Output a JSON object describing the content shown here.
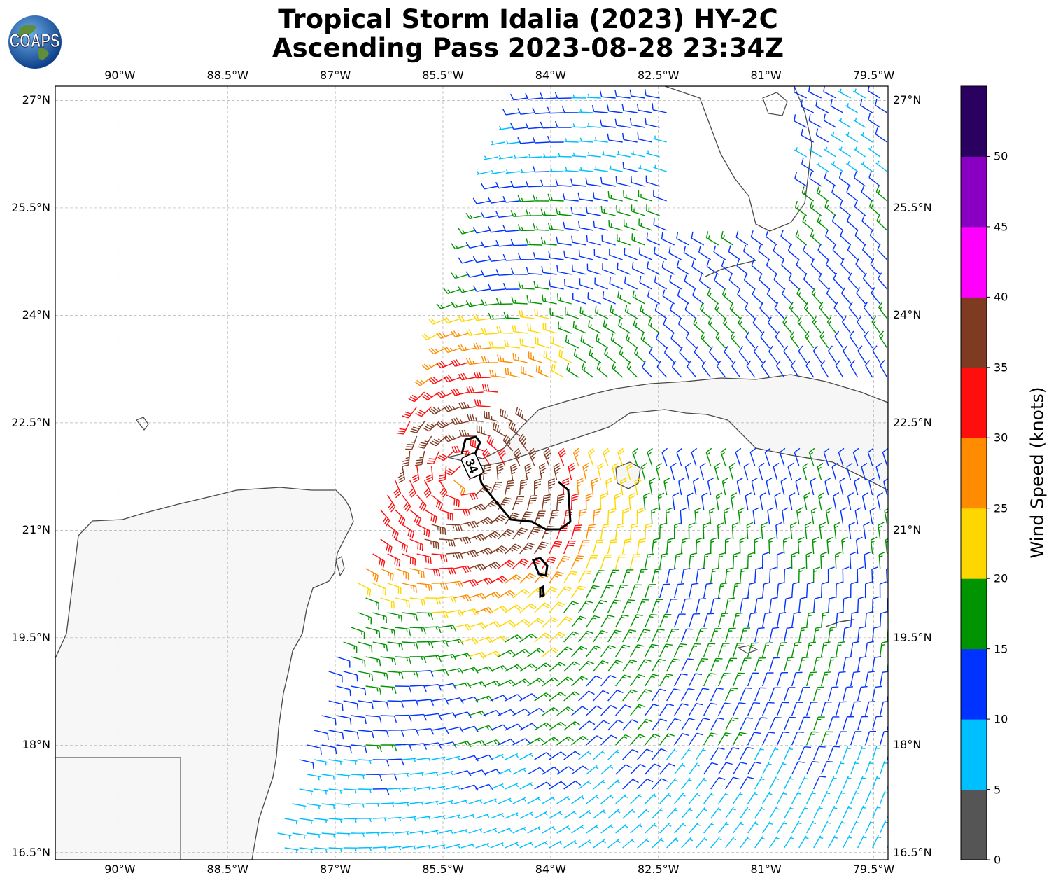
{
  "title": {
    "line1": "Tropical Storm Idalia (2023) HY-2C",
    "line2": "Ascending Pass 2023-08-28 23:34Z"
  },
  "logo": {
    "text": "COAPS",
    "icon": "globe-icon"
  },
  "map": {
    "lon_range": [
      -90.9,
      -79.3
    ],
    "lat_range": [
      16.4,
      27.2
    ],
    "lon_ticks": [
      "90°W",
      "88.5°W",
      "87°W",
      "85.5°W",
      "84°W",
      "82.5°W",
      "81°W",
      "79.5°W"
    ],
    "lat_ticks": [
      "16.5°N",
      "18°N",
      "19.5°N",
      "21°N",
      "22.5°N",
      "24°N",
      "25.5°N",
      "27°N"
    ],
    "grid": true,
    "contour_label": "34",
    "storm_center": {
      "lon": -85.2,
      "lat": 21.8
    }
  },
  "colorbar": {
    "label": "Wind Speed (knots)",
    "ticks": [
      "0",
      "5",
      "10",
      "15",
      "20",
      "25",
      "30",
      "35",
      "40",
      "45",
      "50"
    ],
    "bins": [
      {
        "range": "0-5",
        "color": "#555555"
      },
      {
        "range": "5-10",
        "color": "#00bfff"
      },
      {
        "range": "10-15",
        "color": "#0033ff"
      },
      {
        "range": "15-20",
        "color": "#009400"
      },
      {
        "range": "20-25",
        "color": "#ffd700"
      },
      {
        "range": "25-30",
        "color": "#ff8c00"
      },
      {
        "range": "30-35",
        "color": "#ff0e0e"
      },
      {
        "range": "35-40",
        "color": "#7f3a22"
      },
      {
        "range": "40-45",
        "color": "#ff00ff"
      },
      {
        "range": "45-50",
        "color": "#8a00c2"
      },
      {
        "range": "50+",
        "color": "#2a0060"
      }
    ]
  }
}
